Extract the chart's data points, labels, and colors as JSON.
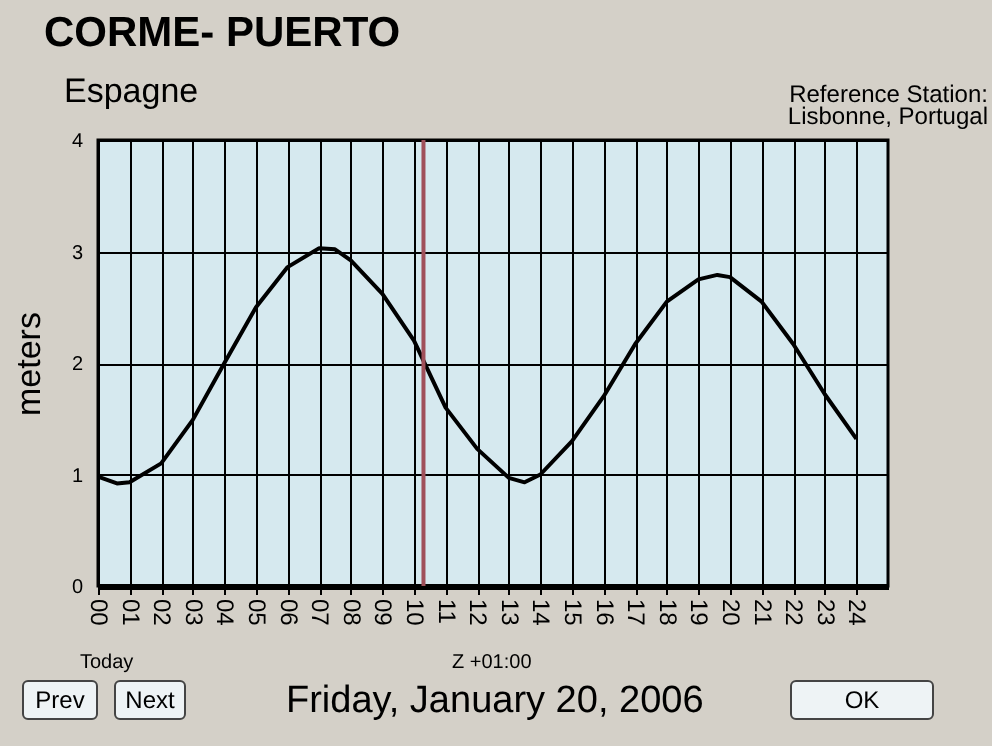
{
  "chart_data": {
    "type": "line",
    "title": "CORME- PUERTO",
    "subtitle": "Espagne",
    "ylabel": "meters",
    "annotations": [
      "Reference Station:",
      "Lisbonne, Portugal",
      "Today",
      "Z +01:00",
      "Friday, January 20, 2006",
      "Prev",
      "Next",
      "OK"
    ],
    "x": [
      0,
      0.6,
      1,
      2,
      3,
      4,
      5,
      6,
      7,
      7.5,
      8,
      9,
      10,
      11,
      12,
      13,
      13.5,
      14,
      15,
      16,
      17,
      18,
      19,
      19.6,
      20,
      21,
      22,
      23,
      24
    ],
    "series": [
      {
        "color": "#000000",
        "values": [
          0.98,
          0.92,
          0.93,
          1.1,
          1.49,
          2.0,
          2.5,
          2.86,
          3.03,
          3.02,
          2.92,
          2.62,
          2.2,
          1.6,
          1.23,
          0.97,
          0.93,
          1.0,
          1.3,
          1.7,
          2.17,
          2.55,
          2.75,
          2.79,
          2.77,
          2.55,
          2.17,
          1.72,
          1.32
        ]
      }
    ],
    "xlim": [
      0,
      25
    ],
    "xticks": [
      {
        "value": 0,
        "label": "00"
      },
      {
        "value": 1,
        "label": "01"
      },
      {
        "value": 2,
        "label": "02"
      },
      {
        "value": 3,
        "label": "03"
      },
      {
        "value": 4,
        "label": "04"
      },
      {
        "value": 5,
        "label": "05"
      },
      {
        "value": 6,
        "label": "06"
      },
      {
        "value": 7,
        "label": "07"
      },
      {
        "value": 8,
        "label": "08"
      },
      {
        "value": 9,
        "label": "09"
      },
      {
        "value": 10,
        "label": "10"
      },
      {
        "value": 11,
        "label": "11"
      },
      {
        "value": 12,
        "label": "12"
      },
      {
        "value": 13,
        "label": "13"
      },
      {
        "value": 14,
        "label": "14"
      },
      {
        "value": 15,
        "label": "15"
      },
      {
        "value": 16,
        "label": "16"
      },
      {
        "value": 17,
        "label": "17"
      },
      {
        "value": 18,
        "label": "18"
      },
      {
        "value": 19,
        "label": "19"
      },
      {
        "value": 20,
        "label": "20"
      },
      {
        "value": 21,
        "label": "21"
      },
      {
        "value": 22,
        "label": "22"
      },
      {
        "value": 23,
        "label": "23"
      },
      {
        "value": 24,
        "label": "24"
      }
    ],
    "ylim": [
      0,
      4
    ],
    "yticks": [
      0,
      1,
      2,
      3,
      4
    ],
    "grid": true,
    "ref_lines": [
      {
        "axis": "x",
        "value": 10.3,
        "color": "#a0505a"
      }
    ],
    "marker": "none",
    "line_style": "solid"
  }
}
